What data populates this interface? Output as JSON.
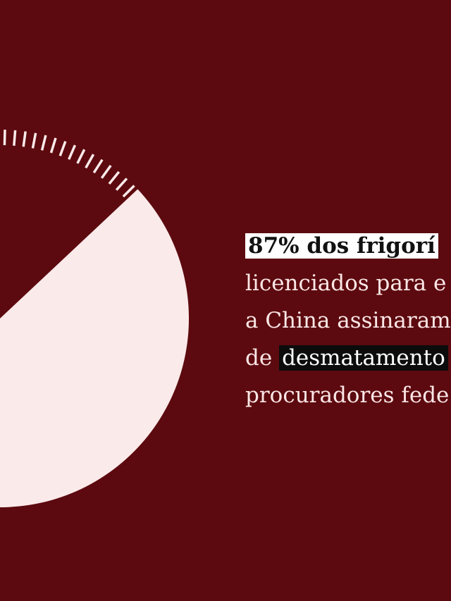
{
  "slide": {
    "pie_percent": 87,
    "headline": {
      "highlight": "87% dos frigorí"
    },
    "lines": [
      "licenciados para e",
      "a China assinaram",
      "procuradores fede"
    ],
    "line4": {
      "before": "de",
      "highlight": "desmatamento"
    }
  }
}
